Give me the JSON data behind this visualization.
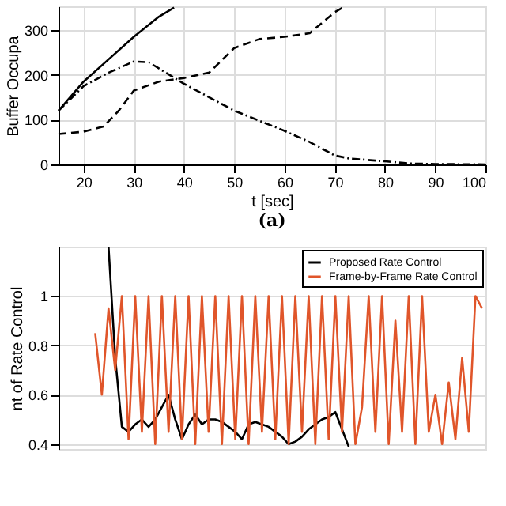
{
  "chart_data": [
    {
      "type": "line",
      "xlabel": "t [sec]",
      "ylabel": "Buffer Occupa",
      "annotations": [
        "(a)"
      ],
      "xlim": [
        15,
        100
      ],
      "xticks": [
        20,
        30,
        40,
        50,
        60,
        70,
        80,
        90,
        100
      ],
      "ylim": [
        0,
        353
      ],
      "yticks": [
        0,
        100,
        200,
        300
      ],
      "grid": true,
      "series": [
        {
          "color": "#000000",
          "line_style": "solid",
          "x": [
            15,
            20,
            25,
            30,
            35,
            38
          ],
          "values": [
            120,
            185,
            235,
            285,
            330,
            350
          ]
        },
        {
          "color": "#000000",
          "line_style": "dashed",
          "x": [
            15,
            20,
            24,
            27,
            30,
            35,
            40,
            45,
            50,
            55,
            60,
            65,
            70,
            72
          ],
          "values": [
            68,
            73,
            85,
            120,
            165,
            185,
            193,
            205,
            260,
            280,
            285,
            293,
            340,
            353
          ]
        },
        {
          "color": "#000000",
          "line_style": "dotted",
          "x": [
            15,
            20,
            25,
            30,
            33,
            40,
            50,
            60,
            65,
            70,
            73,
            80,
            85,
            90,
            100
          ],
          "values": [
            120,
            175,
            205,
            230,
            228,
            180,
            120,
            75,
            50,
            20,
            13,
            7,
            2,
            1,
            0
          ]
        }
      ]
    },
    {
      "type": "line",
      "ylabel": "nt of Rate Control",
      "ylim": [
        0.38,
        1.2
      ],
      "yticks": [
        0.4,
        0.6,
        0.8,
        {
          "value": 1,
          "label": "1"
        }
      ],
      "grid": "y",
      "legend": "top right",
      "tick_labels": "y",
      "categories": [
        null,
        null,
        null,
        null,
        null,
        null,
        null,
        null,
        null,
        null,
        null,
        null,
        null,
        null,
        null,
        null,
        null,
        null,
        null,
        null,
        null,
        null,
        null,
        null,
        null,
        null,
        null,
        null,
        null,
        null,
        null,
        null,
        null,
        null,
        null,
        null,
        null,
        null,
        null,
        null,
        null,
        null,
        null,
        null,
        null,
        null,
        null,
        null,
        null,
        null,
        null,
        null,
        null,
        null,
        null,
        null,
        null,
        null,
        null,
        null,
        null,
        null,
        null,
        null
      ],
      "series": [
        {
          "name": "Proposed Rate Control",
          "color": "#000000",
          "line_style": "solid",
          "values": [
            null,
            null,
            null,
            null,
            null,
            null,
            null,
            1.2,
            0.75,
            0.47,
            0.45,
            0.48,
            0.5,
            0.47,
            0.5,
            0.55,
            0.6,
            0.5,
            0.42,
            0.48,
            0.52,
            0.48,
            0.5,
            0.5,
            0.49,
            0.47,
            0.45,
            0.42,
            0.48,
            0.49,
            0.48,
            0.47,
            0.45,
            0.43,
            0.4,
            0.41,
            0.43,
            0.46,
            0.48,
            0.5,
            0.51,
            0.53,
            0.46,
            0.39,
            null,
            null,
            null,
            null,
            null,
            null,
            null,
            null,
            null,
            null,
            null,
            null,
            null,
            null,
            null,
            null,
            null,
            null,
            null,
            null
          ]
        },
        {
          "name": "Frame-by-Frame Rate Control",
          "color": "#e0552a",
          "line_style": "solid",
          "values": [
            null,
            null,
            null,
            null,
            null,
            0.85,
            0.6,
            0.95,
            0.7,
            1,
            0.42,
            1,
            0.45,
            1,
            0.4,
            1,
            0.45,
            1,
            0.42,
            1,
            0.4,
            1,
            0.45,
            1,
            0.4,
            1,
            0.42,
            1,
            0.4,
            1,
            0.45,
            1,
            0.42,
            1,
            0.4,
            1,
            0.45,
            1,
            0.4,
            1,
            0.42,
            1,
            0.45,
            1,
            0.4,
            0.55,
            1,
            0.45,
            1,
            0.4,
            0.9,
            0.45,
            1,
            0.4,
            1,
            0.45,
            0.6,
            0.4,
            0.65,
            0.42,
            0.75,
            0.45,
            1,
            0.95
          ]
        }
      ]
    }
  ]
}
